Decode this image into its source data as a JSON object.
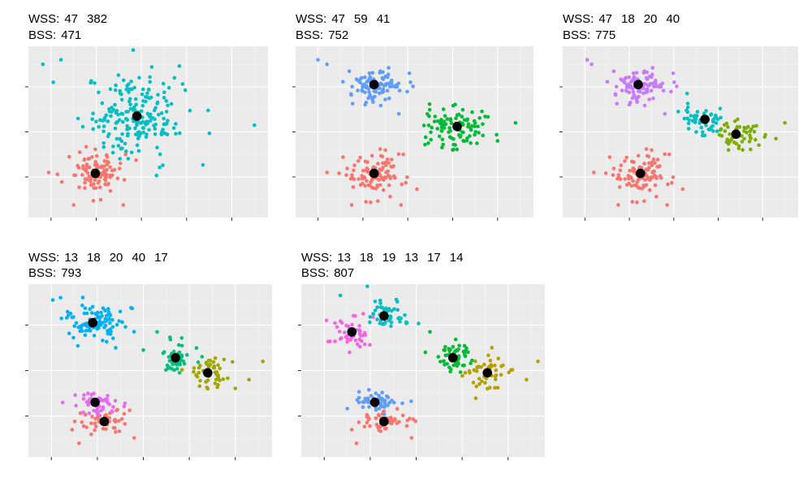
{
  "colors": {
    "panel_background": "#ebebeb",
    "gridline": "#ffffff",
    "centroid": "#000000"
  },
  "chart_data": [
    {
      "type": "scatter",
      "k": 2,
      "wss_label": "WSS:",
      "wss": [
        "47",
        "382"
      ],
      "bss_label": "BSS:",
      "bss": "471",
      "xlim": [
        -0.5,
        4.8
      ],
      "ylim": [
        -0.9,
        2.9
      ],
      "clusters": [
        {
          "color": "#F8766D",
          "center": [
            0.98,
            0.08
          ],
          "spread": [
            0.32,
            0.24
          ],
          "n": 100,
          "outliers": [
            [
              0.5,
              -0.62
            ],
            [
              1.6,
              -0.62
            ],
            [
              -0.05,
              0.1
            ],
            [
              1.65,
              0.5
            ]
          ]
        },
        {
          "color": "#00BFC4",
          "center": [
            1.9,
            1.35
          ],
          "spread": [
            0.5,
            0.5
          ],
          "n": 200,
          "outliers": [
            [
              0.22,
              2.6
            ],
            [
              -0.18,
              2.5
            ],
            [
              4.5,
              1.15
            ],
            [
              0.05,
              2.1
            ]
          ]
        }
      ],
      "centroids": [
        [
          0.98,
          0.08
        ],
        [
          1.9,
          1.35
        ]
      ]
    },
    {
      "type": "scatter",
      "k": 3,
      "wss_label": "WSS:",
      "wss": [
        "47",
        "59",
        "41"
      ],
      "bss_label": "BSS:",
      "bss": "752",
      "xlim": [
        -0.5,
        4.8
      ],
      "ylim": [
        -0.9,
        2.9
      ],
      "clusters": [
        {
          "color": "#F8766D",
          "center": [
            1.25,
            0.08
          ],
          "spread": [
            0.32,
            0.24
          ],
          "n": 100,
          "outliers": [
            [
              0.75,
              -0.62
            ],
            [
              1.85,
              -0.62
            ],
            [
              0.2,
              0.1
            ],
            [
              1.9,
              0.5
            ]
          ]
        },
        {
          "color": "#619CFF",
          "center": [
            1.25,
            2.05
          ],
          "spread": [
            0.32,
            0.2
          ],
          "n": 100,
          "outliers": [
            [
              0.0,
              2.6
            ],
            [
              0.2,
              2.5
            ],
            [
              1.8,
              1.4
            ]
          ]
        },
        {
          "color": "#00BA38",
          "center": [
            3.1,
            1.12
          ],
          "spread": [
            0.32,
            0.24
          ],
          "n": 100,
          "outliers": [
            [
              4.4,
              1.2
            ],
            [
              3.0,
              0.6
            ],
            [
              4.0,
              0.8
            ]
          ]
        }
      ],
      "centroids": [
        [
          1.25,
          0.08
        ],
        [
          1.25,
          2.05
        ],
        [
          3.1,
          1.12
        ]
      ]
    },
    {
      "type": "scatter",
      "k": 4,
      "wss_label": "WSS:",
      "wss": [
        "47",
        "18",
        "20",
        "40"
      ],
      "bss_label": "BSS:",
      "bss": "775",
      "xlim": [
        -0.5,
        4.8
      ],
      "ylim": [
        -0.9,
        2.9
      ],
      "clusters": [
        {
          "color": "#F8766D",
          "center": [
            1.25,
            0.08
          ],
          "spread": [
            0.32,
            0.24
          ],
          "n": 100,
          "outliers": [
            [
              0.75,
              -0.62
            ],
            [
              1.85,
              -0.62
            ],
            [
              0.2,
              0.1
            ],
            [
              1.9,
              0.5
            ]
          ]
        },
        {
          "color": "#C77CFF",
          "center": [
            1.2,
            2.05
          ],
          "spread": [
            0.32,
            0.2
          ],
          "n": 100,
          "outliers": [
            [
              0.05,
              2.6
            ],
            [
              0.15,
              2.5
            ],
            [
              1.8,
              1.4
            ]
          ]
        },
        {
          "color": "#00BFC4",
          "center": [
            2.7,
            1.28
          ],
          "spread": [
            0.2,
            0.17
          ],
          "n": 50,
          "outliers": [
            [
              2.3,
              1.85
            ],
            [
              2.1,
              1.45
            ]
          ]
        },
        {
          "color": "#7CAE00",
          "center": [
            3.4,
            0.95
          ],
          "spread": [
            0.25,
            0.17
          ],
          "n": 50,
          "outliers": [
            [
              4.5,
              1.2
            ],
            [
              3.55,
              0.6
            ],
            [
              4.3,
              0.85
            ]
          ]
        }
      ],
      "centroids": [
        [
          1.25,
          0.08
        ],
        [
          1.2,
          2.05
        ],
        [
          2.7,
          1.28
        ],
        [
          3.4,
          0.95
        ]
      ]
    },
    {
      "type": "scatter",
      "k": 5,
      "wss_label": "WSS:",
      "wss": [
        "13",
        "18",
        "20",
        "40",
        "17"
      ],
      "bss_label": "BSS:",
      "bss": "793",
      "xlim": [
        -0.5,
        4.8
      ],
      "ylim": [
        -0.9,
        2.9
      ],
      "clusters": [
        {
          "color": "#F8766D",
          "center": [
            1.15,
            -0.12
          ],
          "spread": [
            0.3,
            0.13
          ],
          "n": 50,
          "outliers": [
            [
              0.6,
              -0.6
            ],
            [
              1.8,
              -0.48
            ],
            [
              0.45,
              -0.3
            ]
          ]
        },
        {
          "color": "#E76BF3",
          "center": [
            0.95,
            0.3
          ],
          "spread": [
            0.22,
            0.12
          ],
          "n": 50,
          "outliers": [
            [
              1.6,
              0.28
            ]
          ]
        },
        {
          "color": "#00B0F6",
          "center": [
            0.9,
            2.05
          ],
          "spread": [
            0.32,
            0.2
          ],
          "n": 100,
          "outliers": [
            [
              0.03,
              2.55
            ],
            [
              0.2,
              2.6
            ],
            [
              1.4,
              1.5
            ]
          ]
        },
        {
          "color": "#00BF7D",
          "center": [
            2.7,
            1.28
          ],
          "spread": [
            0.2,
            0.17
          ],
          "n": 50,
          "outliers": [
            [
              2.3,
              1.85
            ],
            [
              2.0,
              1.45
            ]
          ]
        },
        {
          "color": "#A3A500",
          "center": [
            3.4,
            0.95
          ],
          "spread": [
            0.25,
            0.17
          ],
          "n": 50,
          "outliers": [
            [
              4.6,
              1.2
            ],
            [
              3.4,
              0.6
            ],
            [
              4.3,
              0.8
            ]
          ]
        }
      ],
      "centroids": [
        [
          1.15,
          -0.12
        ],
        [
          0.95,
          0.3
        ],
        [
          0.9,
          2.05
        ],
        [
          2.7,
          1.28
        ],
        [
          3.4,
          0.95
        ]
      ]
    },
    {
      "type": "scatter",
      "k": 6,
      "wss_label": "WSS:",
      "wss": [
        "13",
        "18",
        "19",
        "13",
        "17",
        "14"
      ],
      "bss_label": "BSS:",
      "bss": "807",
      "xlim": [
        -0.5,
        4.8
      ],
      "ylim": [
        -0.9,
        2.9
      ],
      "clusters": [
        {
          "color": "#F8766D",
          "center": [
            1.3,
            -0.12
          ],
          "spread": [
            0.3,
            0.13
          ],
          "n": 50,
          "outliers": [
            [
              0.7,
              -0.6
            ],
            [
              1.9,
              -0.48
            ],
            [
              0.6,
              -0.3
            ]
          ]
        },
        {
          "color": "#619CFF",
          "center": [
            1.1,
            0.3
          ],
          "spread": [
            0.22,
            0.12
          ],
          "n": 50,
          "outliers": [
            [
              1.7,
              0.28
            ]
          ]
        },
        {
          "color": "#F564E3",
          "center": [
            0.6,
            1.85
          ],
          "spread": [
            0.2,
            0.16
          ],
          "n": 50,
          "outliers": [
            [
              0.05,
              2.1
            ],
            [
              0.55,
              1.4
            ]
          ]
        },
        {
          "color": "#00BFC4",
          "center": [
            1.3,
            2.2
          ],
          "spread": [
            0.24,
            0.16
          ],
          "n": 50,
          "outliers": [
            [
              0.35,
              2.65
            ],
            [
              1.8,
              2.05
            ]
          ]
        },
        {
          "color": "#00BA38",
          "center": [
            2.8,
            1.28
          ],
          "spread": [
            0.2,
            0.17
          ],
          "n": 50,
          "outliers": [
            [
              2.3,
              1.85
            ],
            [
              2.2,
              1.4
            ]
          ]
        },
        {
          "color": "#B79F00",
          "center": [
            3.55,
            0.95
          ],
          "spread": [
            0.25,
            0.17
          ],
          "n": 50,
          "outliers": [
            [
              4.65,
              1.2
            ],
            [
              3.55,
              0.6
            ],
            [
              4.4,
              0.8
            ]
          ]
        }
      ],
      "centroids": [
        [
          1.3,
          -0.12
        ],
        [
          1.1,
          0.3
        ],
        [
          0.6,
          1.85
        ],
        [
          1.3,
          2.2
        ],
        [
          2.8,
          1.28
        ],
        [
          3.55,
          0.95
        ]
      ]
    }
  ]
}
